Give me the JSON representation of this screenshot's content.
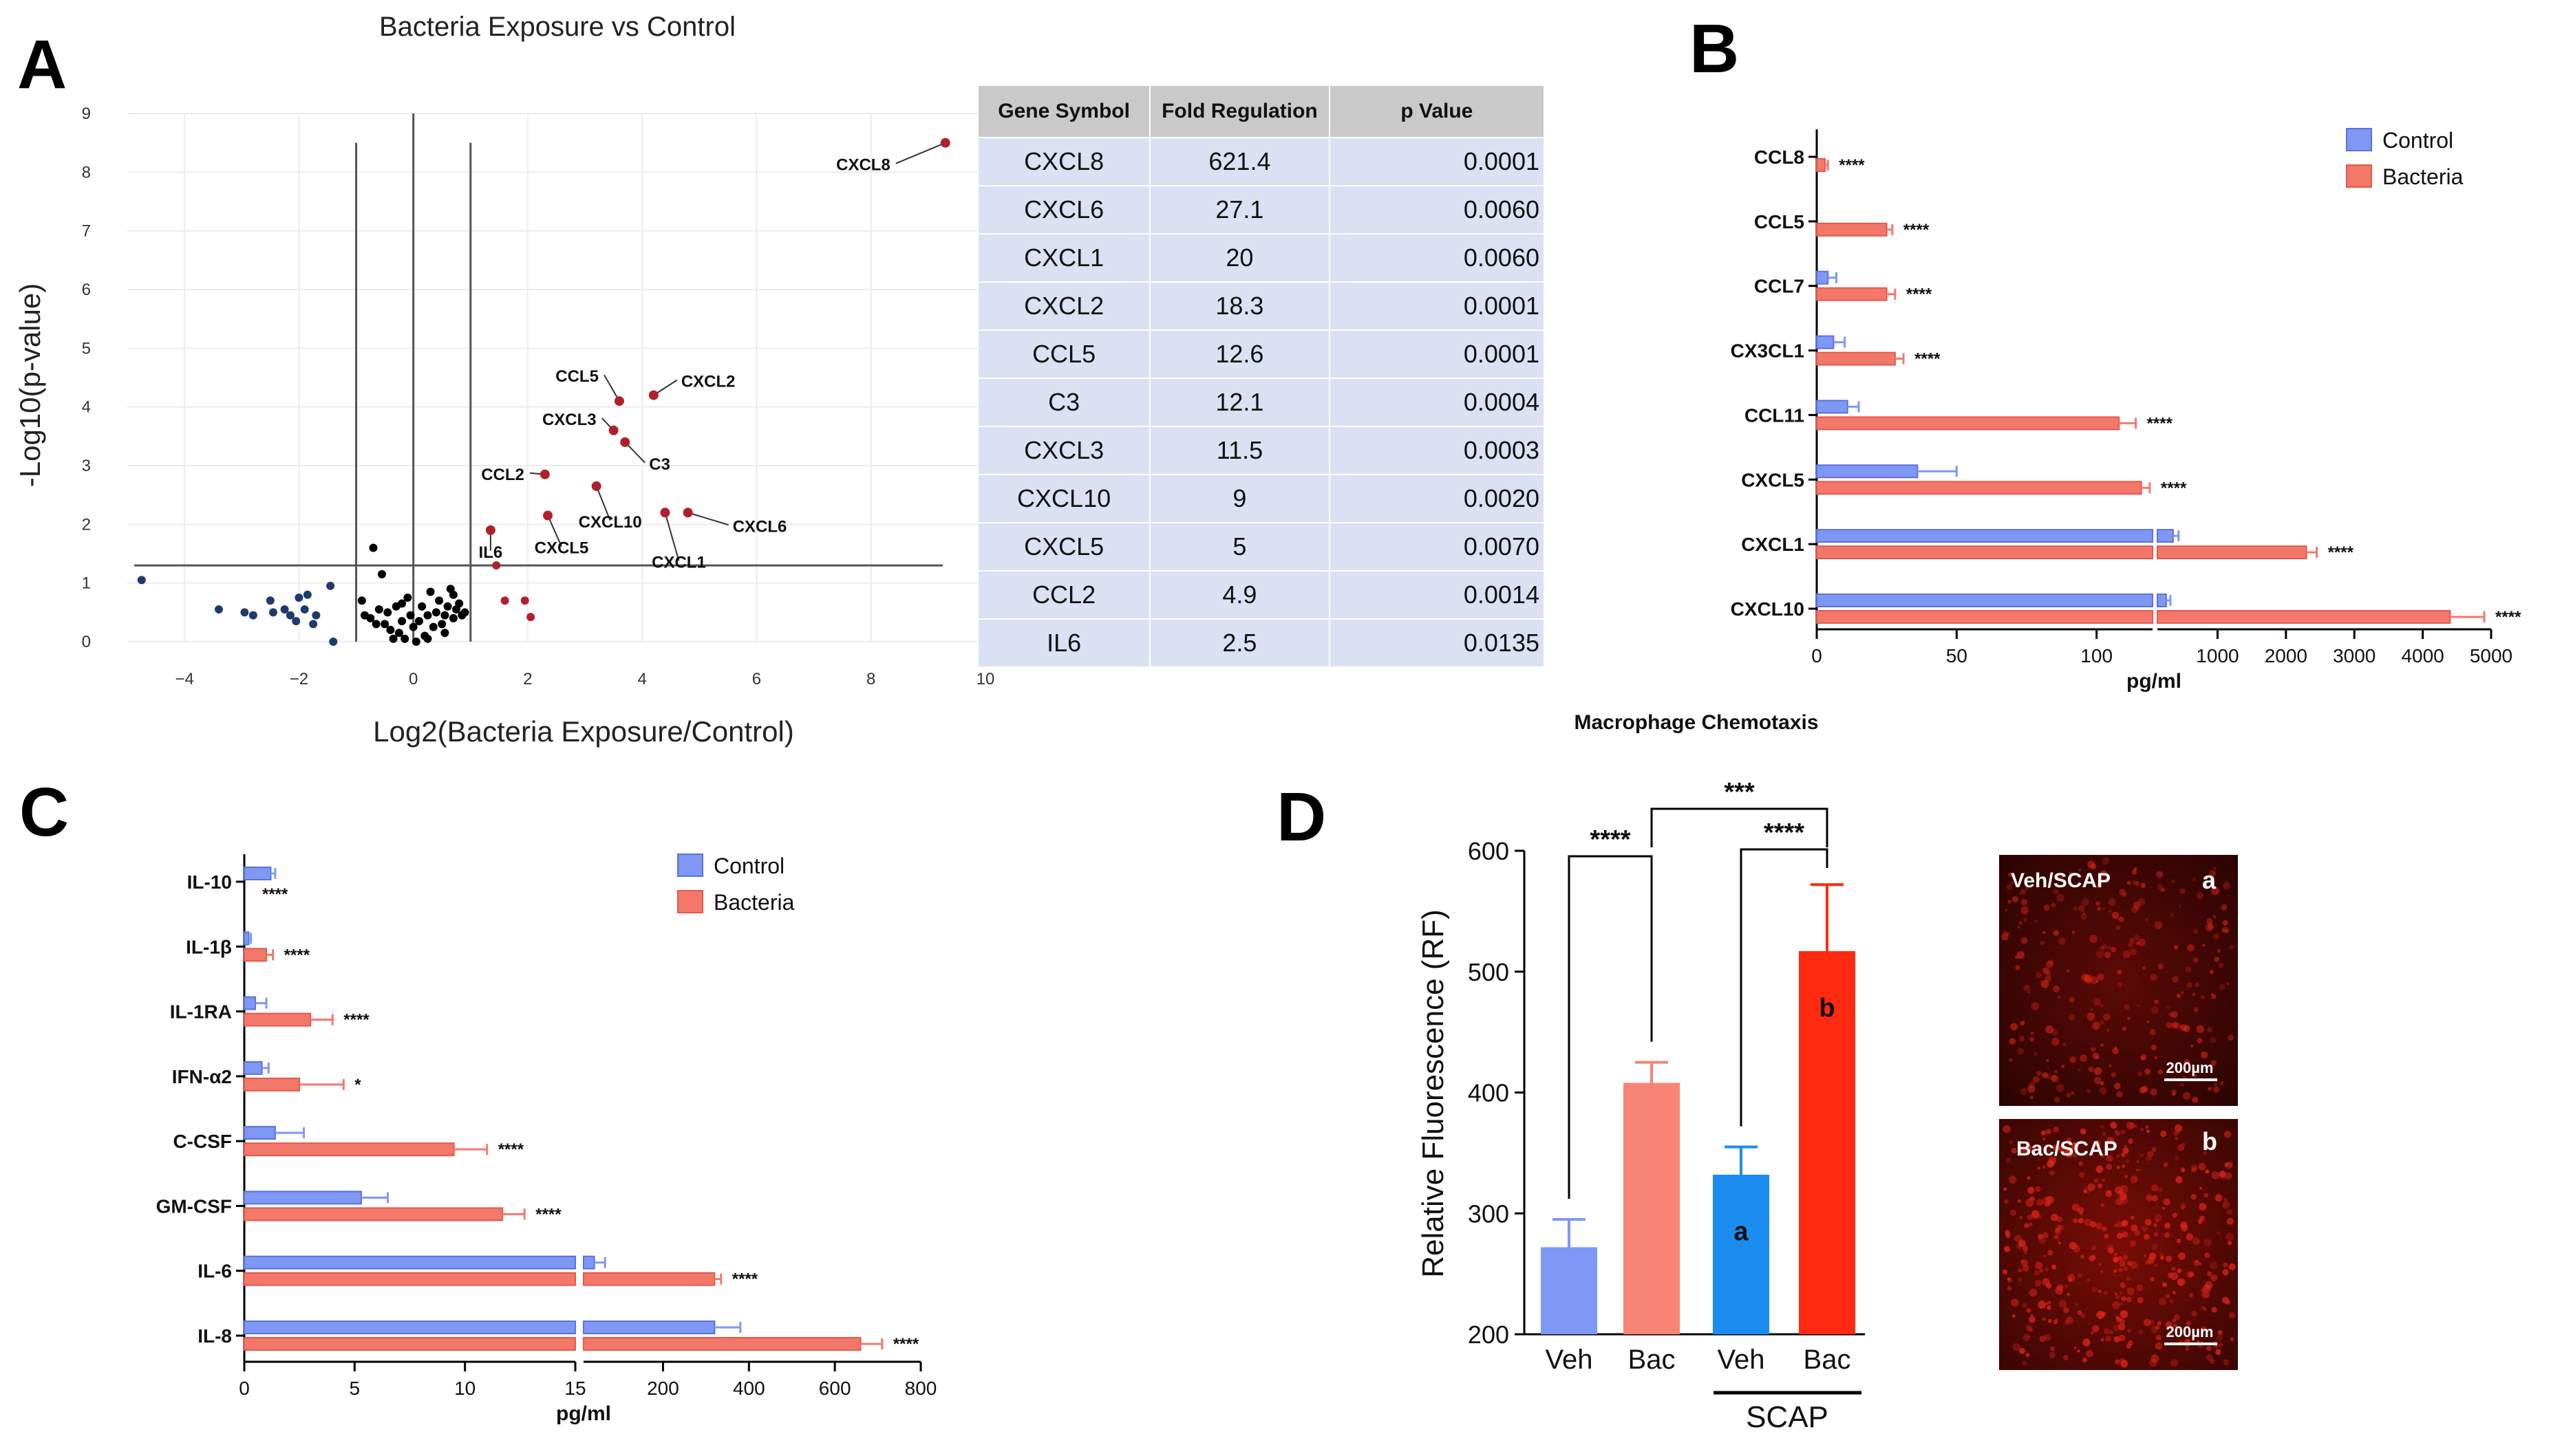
{
  "panels": {
    "A": {
      "letter": "A",
      "title": "Bacteria Exposure vs Control",
      "xlabel": "Log2(Bacteria Exposure/Control)",
      "ylabel": "-Log10(p-value)",
      "table": {
        "headers": [
          "Gene Symbol",
          "Fold Regulation",
          "p Value"
        ],
        "rows": [
          [
            "CXCL8",
            "621.4",
            "0.0001"
          ],
          [
            "CXCL6",
            "27.1",
            "0.0060"
          ],
          [
            "CXCL1",
            "20",
            "0.0060"
          ],
          [
            "CXCL2",
            "18.3",
            "0.0001"
          ],
          [
            "CCL5",
            "12.6",
            "0.0001"
          ],
          [
            "C3",
            "12.1",
            "0.0004"
          ],
          [
            "CXCL3",
            "11.5",
            "0.0003"
          ],
          [
            "CXCL10",
            "9",
            "0.0020"
          ],
          [
            "CXCL5",
            "5",
            "0.0070"
          ],
          [
            "CCL2",
            "4.9",
            "0.0014"
          ],
          [
            "IL6",
            "2.5",
            "0.0135"
          ]
        ]
      }
    },
    "B": {
      "letter": "B",
      "title": "Macrophage Chemotaxis"
    },
    "C": {
      "letter": "C"
    },
    "D": {
      "letter": "D",
      "group_label": "SCAP",
      "images": [
        {
          "label": "Veh/SCAP",
          "tag": "a",
          "scale": "200µm"
        },
        {
          "label": "Bac/SCAP",
          "tag": "b",
          "scale": "200µm"
        }
      ]
    }
  },
  "colors": {
    "control": "#7f97f5",
    "bacteria": "#f4786a",
    "volcano_up": "#b0202c",
    "volcano_down": "#1f3a6b",
    "volcano_ns": "#000000",
    "d_veh": "#7f97f5",
    "d_bac": "#f78475",
    "d_scap_veh": "#1a8cf0",
    "d_scap_bac": "#ff2a12"
  },
  "chart_data": [
    {
      "panel": "A",
      "type": "scatter",
      "title": "Bacteria Exposure vs Control",
      "xlabel": "Log2(Bacteria Exposure/Control)",
      "ylabel": "-Log10(p-value)",
      "xlim": [
        -5,
        10
      ],
      "ylim": [
        0,
        9
      ],
      "xticks": [
        -4,
        -2,
        0,
        2,
        4,
        6,
        8,
        10
      ],
      "xtick_labels": [
        "−4",
        "−2",
        "0",
        "2",
        "4",
        "6",
        "8",
        "10"
      ],
      "yticks": [
        0,
        1,
        2,
        3,
        4,
        5,
        6,
        7,
        8,
        9
      ],
      "fold_lines": [
        -1,
        1
      ],
      "p_line": 1.3,
      "labeled_points": [
        {
          "label": "CXCL8",
          "x": 9.3,
          "y": 8.5
        },
        {
          "label": "CXCL2",
          "x": 4.2,
          "y": 4.2
        },
        {
          "label": "CCL5",
          "x": 3.6,
          "y": 4.1
        },
        {
          "label": "CXCL3",
          "x": 3.5,
          "y": 3.6
        },
        {
          "label": "C3",
          "x": 3.7,
          "y": 3.4
        },
        {
          "label": "CCL2",
          "x": 2.3,
          "y": 2.85
        },
        {
          "label": "CXCL10",
          "x": 3.2,
          "y": 2.65
        },
        {
          "label": "CXCL6",
          "x": 4.8,
          "y": 2.2
        },
        {
          "label": "CXCL1",
          "x": 4.4,
          "y": 2.2
        },
        {
          "label": "CXCL5",
          "x": 2.35,
          "y": 2.15
        },
        {
          "label": "IL6",
          "x": 1.35,
          "y": 1.9
        }
      ],
      "up_points": [
        [
          1.45,
          1.3
        ],
        [
          1.6,
          0.7
        ],
        [
          1.95,
          0.7
        ],
        [
          2.05,
          0.42
        ]
      ],
      "down_points": [
        [
          -4.75,
          1.05
        ],
        [
          -3.4,
          0.55
        ],
        [
          -2.95,
          0.5
        ],
        [
          -2.8,
          0.45
        ],
        [
          -2.5,
          0.7
        ],
        [
          -2.45,
          0.5
        ],
        [
          -2.25,
          0.55
        ],
        [
          -2.15,
          0.45
        ],
        [
          -2.05,
          0.35
        ],
        [
          -2.0,
          0.75
        ],
        [
          -1.9,
          0.55
        ],
        [
          -1.85,
          0.8
        ],
        [
          -1.75,
          0.3
        ],
        [
          -1.7,
          0.45
        ],
        [
          -1.45,
          0.95
        ],
        [
          -1.4,
          0.0
        ]
      ],
      "ns_points": [
        [
          -0.9,
          0.7
        ],
        [
          -0.85,
          0.45
        ],
        [
          -0.75,
          0.4
        ],
        [
          -0.7,
          1.6
        ],
        [
          -0.6,
          0.55
        ],
        [
          -0.55,
          1.15
        ],
        [
          -0.5,
          0.3
        ],
        [
          -0.45,
          0.5
        ],
        [
          -0.4,
          0.2
        ],
        [
          -0.35,
          0.05
        ],
        [
          -0.3,
          0.6
        ],
        [
          -0.25,
          0.15
        ],
        [
          -0.2,
          0.35
        ],
        [
          -0.15,
          0.05
        ],
        [
          -0.1,
          0.75
        ],
        [
          -0.05,
          0.45
        ],
        [
          0.0,
          0.25
        ],
        [
          0.05,
          0.0
        ],
        [
          0.1,
          0.35
        ],
        [
          0.15,
          0.6
        ],
        [
          0.2,
          0.1
        ],
        [
          0.25,
          0.45
        ],
        [
          0.3,
          0.85
        ],
        [
          0.35,
          0.25
        ],
        [
          0.4,
          0.5
        ],
        [
          0.45,
          0.7
        ],
        [
          0.5,
          0.3
        ],
        [
          0.55,
          0.45
        ],
        [
          0.6,
          0.6
        ],
        [
          0.65,
          0.9
        ],
        [
          0.7,
          0.4
        ],
        [
          0.75,
          0.55
        ],
        [
          0.8,
          0.65
        ],
        [
          0.85,
          0.45
        ],
        [
          0.9,
          0.5
        ],
        [
          -0.65,
          0.3
        ],
        [
          -0.2,
          0.65
        ],
        [
          0.25,
          0.05
        ],
        [
          0.55,
          0.15
        ],
        [
          0.7,
          0.8
        ]
      ]
    },
    {
      "panel": "B",
      "type": "bar",
      "orientation": "horizontal",
      "title": "Macrophage Chemotaxis",
      "xlabel": "pg/ml",
      "categories": [
        "CCL8",
        "CCL5",
        "CCL7",
        "CX3CL1",
        "CCL11",
        "CXCL5",
        "CXCL1",
        "CXCL10"
      ],
      "axis_segments": [
        {
          "range": [
            0,
            120
          ],
          "ticks": [
            0,
            50,
            100
          ]
        },
        {
          "range": [
            120,
            5000
          ],
          "ticks": [
            1000,
            2000,
            3000,
            4000,
            5000
          ]
        }
      ],
      "legend": [
        "Control",
        "Bacteria"
      ],
      "legend_position": "top-right",
      "series": [
        {
          "name": "Control",
          "values": [
            0,
            0,
            4,
            6,
            11,
            36,
            350,
            250
          ],
          "errors": [
            0,
            0,
            3,
            4,
            4,
            14,
            80,
            60
          ]
        },
        {
          "name": "Bacteria",
          "values": [
            3,
            25,
            25,
            28,
            108,
            116,
            2300,
            4400
          ],
          "errors": [
            1,
            2,
            3,
            3,
            6,
            3,
            150,
            500
          ]
        }
      ],
      "significance": [
        "****",
        "****",
        "****",
        "****",
        "****",
        "****",
        "****",
        "****"
      ]
    },
    {
      "panel": "C",
      "type": "bar",
      "orientation": "horizontal",
      "xlabel": "pg/ml",
      "categories": [
        "IL-10",
        "IL-1β",
        "IL-1RA",
        "IFN-α2",
        "C-CSF",
        "GM-CSF",
        "IL-6",
        "IL-8"
      ],
      "axis_segments": [
        {
          "range": [
            0,
            15
          ],
          "ticks": [
            0,
            5,
            10,
            15
          ]
        },
        {
          "range": [
            15,
            800
          ],
          "ticks": [
            200,
            400,
            600,
            800
          ]
        }
      ],
      "legend": [
        "Control",
        "Bacteria"
      ],
      "legend_position": "top-right",
      "series": [
        {
          "name": "Control",
          "values": [
            1.2,
            0.2,
            0.5,
            0.8,
            1.4,
            5.3,
            40,
            320
          ],
          "errors": [
            0.2,
            0.1,
            0.5,
            0.3,
            1.3,
            1.2,
            25,
            60
          ]
        },
        {
          "name": "Bacteria",
          "values": [
            0,
            1.0,
            3.0,
            2.5,
            9.5,
            11.7,
            320,
            660
          ],
          "errors": [
            0,
            0.3,
            1.0,
            2.0,
            1.5,
            1.0,
            15,
            50
          ]
        }
      ],
      "significance": [
        "****",
        "****",
        "****",
        "*",
        "****",
        "****",
        "****",
        "****"
      ]
    },
    {
      "panel": "D",
      "type": "bar",
      "ylabel": "Relative Fluorescence (RF)",
      "ylim": [
        200,
        600
      ],
      "yticks": [
        200,
        300,
        400,
        500,
        600
      ],
      "categories": [
        "Veh",
        "Bac",
        "Veh",
        "Bac"
      ],
      "values": [
        272,
        408,
        332,
        517
      ],
      "errors": [
        23,
        17,
        23,
        55
      ],
      "bar_tags": [
        "",
        "",
        "a",
        "b"
      ],
      "brackets": [
        {
          "from": 0,
          "to": 1,
          "label": "****"
        },
        {
          "from": 1,
          "to": 3,
          "label": "***"
        },
        {
          "from": 2,
          "to": 3,
          "label": "****"
        }
      ]
    }
  ]
}
